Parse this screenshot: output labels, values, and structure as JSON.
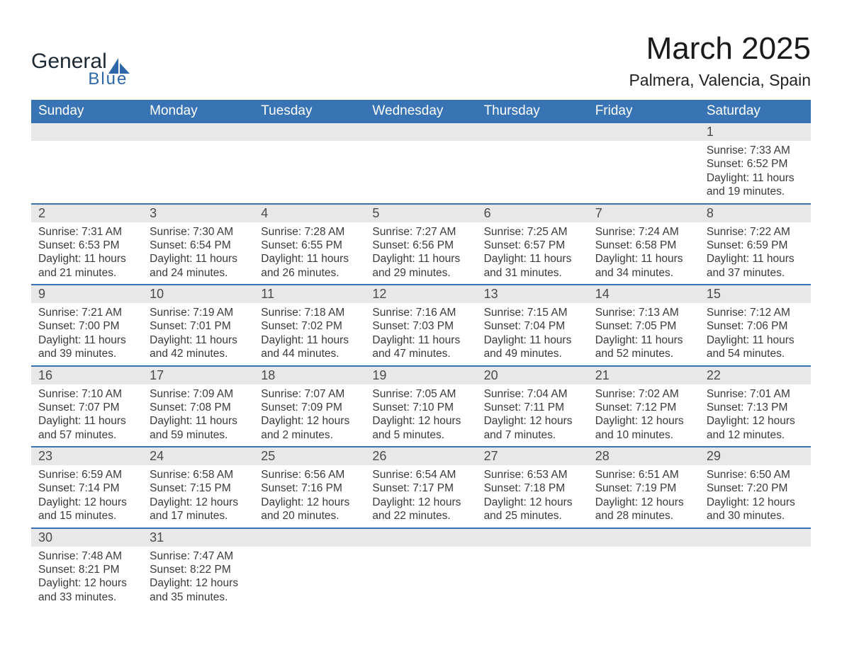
{
  "brand": {
    "word1": "General",
    "word2": "Blue",
    "word1_color": "#1e2a33",
    "word2_color": "#2d67a9",
    "sail_color": "#2d67a9"
  },
  "header": {
    "title": "March 2025",
    "location": "Palmera, Valencia, Spain",
    "title_fontsize": 44,
    "location_fontsize": 23,
    "title_color": "#1a1a1a",
    "location_color": "#222222"
  },
  "calendar": {
    "header_bg": "#3874b4",
    "header_fg": "#ffffff",
    "daynum_bg": "#e8e8e8",
    "daynum_fg": "#4a4a4a",
    "row_border_color": "#3874b4",
    "body_text_color": "#3a3a3a",
    "background_color": "#ffffff",
    "columns": [
      "Sunday",
      "Monday",
      "Tuesday",
      "Wednesday",
      "Thursday",
      "Friday",
      "Saturday"
    ],
    "weeks": [
      [
        null,
        null,
        null,
        null,
        null,
        null,
        {
          "n": "1",
          "sunrise": "Sunrise: 7:33 AM",
          "sunset": "Sunset: 6:52 PM",
          "day1": "Daylight: 11 hours",
          "day2": "and 19 minutes."
        }
      ],
      [
        {
          "n": "2",
          "sunrise": "Sunrise: 7:31 AM",
          "sunset": "Sunset: 6:53 PM",
          "day1": "Daylight: 11 hours",
          "day2": "and 21 minutes."
        },
        {
          "n": "3",
          "sunrise": "Sunrise: 7:30 AM",
          "sunset": "Sunset: 6:54 PM",
          "day1": "Daylight: 11 hours",
          "day2": "and 24 minutes."
        },
        {
          "n": "4",
          "sunrise": "Sunrise: 7:28 AM",
          "sunset": "Sunset: 6:55 PM",
          "day1": "Daylight: 11 hours",
          "day2": "and 26 minutes."
        },
        {
          "n": "5",
          "sunrise": "Sunrise: 7:27 AM",
          "sunset": "Sunset: 6:56 PM",
          "day1": "Daylight: 11 hours",
          "day2": "and 29 minutes."
        },
        {
          "n": "6",
          "sunrise": "Sunrise: 7:25 AM",
          "sunset": "Sunset: 6:57 PM",
          "day1": "Daylight: 11 hours",
          "day2": "and 31 minutes."
        },
        {
          "n": "7",
          "sunrise": "Sunrise: 7:24 AM",
          "sunset": "Sunset: 6:58 PM",
          "day1": "Daylight: 11 hours",
          "day2": "and 34 minutes."
        },
        {
          "n": "8",
          "sunrise": "Sunrise: 7:22 AM",
          "sunset": "Sunset: 6:59 PM",
          "day1": "Daylight: 11 hours",
          "day2": "and 37 minutes."
        }
      ],
      [
        {
          "n": "9",
          "sunrise": "Sunrise: 7:21 AM",
          "sunset": "Sunset: 7:00 PM",
          "day1": "Daylight: 11 hours",
          "day2": "and 39 minutes."
        },
        {
          "n": "10",
          "sunrise": "Sunrise: 7:19 AM",
          "sunset": "Sunset: 7:01 PM",
          "day1": "Daylight: 11 hours",
          "day2": "and 42 minutes."
        },
        {
          "n": "11",
          "sunrise": "Sunrise: 7:18 AM",
          "sunset": "Sunset: 7:02 PM",
          "day1": "Daylight: 11 hours",
          "day2": "and 44 minutes."
        },
        {
          "n": "12",
          "sunrise": "Sunrise: 7:16 AM",
          "sunset": "Sunset: 7:03 PM",
          "day1": "Daylight: 11 hours",
          "day2": "and 47 minutes."
        },
        {
          "n": "13",
          "sunrise": "Sunrise: 7:15 AM",
          "sunset": "Sunset: 7:04 PM",
          "day1": "Daylight: 11 hours",
          "day2": "and 49 minutes."
        },
        {
          "n": "14",
          "sunrise": "Sunrise: 7:13 AM",
          "sunset": "Sunset: 7:05 PM",
          "day1": "Daylight: 11 hours",
          "day2": "and 52 minutes."
        },
        {
          "n": "15",
          "sunrise": "Sunrise: 7:12 AM",
          "sunset": "Sunset: 7:06 PM",
          "day1": "Daylight: 11 hours",
          "day2": "and 54 minutes."
        }
      ],
      [
        {
          "n": "16",
          "sunrise": "Sunrise: 7:10 AM",
          "sunset": "Sunset: 7:07 PM",
          "day1": "Daylight: 11 hours",
          "day2": "and 57 minutes."
        },
        {
          "n": "17",
          "sunrise": "Sunrise: 7:09 AM",
          "sunset": "Sunset: 7:08 PM",
          "day1": "Daylight: 11 hours",
          "day2": "and 59 minutes."
        },
        {
          "n": "18",
          "sunrise": "Sunrise: 7:07 AM",
          "sunset": "Sunset: 7:09 PM",
          "day1": "Daylight: 12 hours",
          "day2": "and 2 minutes."
        },
        {
          "n": "19",
          "sunrise": "Sunrise: 7:05 AM",
          "sunset": "Sunset: 7:10 PM",
          "day1": "Daylight: 12 hours",
          "day2": "and 5 minutes."
        },
        {
          "n": "20",
          "sunrise": "Sunrise: 7:04 AM",
          "sunset": "Sunset: 7:11 PM",
          "day1": "Daylight: 12 hours",
          "day2": "and 7 minutes."
        },
        {
          "n": "21",
          "sunrise": "Sunrise: 7:02 AM",
          "sunset": "Sunset: 7:12 PM",
          "day1": "Daylight: 12 hours",
          "day2": "and 10 minutes."
        },
        {
          "n": "22",
          "sunrise": "Sunrise: 7:01 AM",
          "sunset": "Sunset: 7:13 PM",
          "day1": "Daylight: 12 hours",
          "day2": "and 12 minutes."
        }
      ],
      [
        {
          "n": "23",
          "sunrise": "Sunrise: 6:59 AM",
          "sunset": "Sunset: 7:14 PM",
          "day1": "Daylight: 12 hours",
          "day2": "and 15 minutes."
        },
        {
          "n": "24",
          "sunrise": "Sunrise: 6:58 AM",
          "sunset": "Sunset: 7:15 PM",
          "day1": "Daylight: 12 hours",
          "day2": "and 17 minutes."
        },
        {
          "n": "25",
          "sunrise": "Sunrise: 6:56 AM",
          "sunset": "Sunset: 7:16 PM",
          "day1": "Daylight: 12 hours",
          "day2": "and 20 minutes."
        },
        {
          "n": "26",
          "sunrise": "Sunrise: 6:54 AM",
          "sunset": "Sunset: 7:17 PM",
          "day1": "Daylight: 12 hours",
          "day2": "and 22 minutes."
        },
        {
          "n": "27",
          "sunrise": "Sunrise: 6:53 AM",
          "sunset": "Sunset: 7:18 PM",
          "day1": "Daylight: 12 hours",
          "day2": "and 25 minutes."
        },
        {
          "n": "28",
          "sunrise": "Sunrise: 6:51 AM",
          "sunset": "Sunset: 7:19 PM",
          "day1": "Daylight: 12 hours",
          "day2": "and 28 minutes."
        },
        {
          "n": "29",
          "sunrise": "Sunrise: 6:50 AM",
          "sunset": "Sunset: 7:20 PM",
          "day1": "Daylight: 12 hours",
          "day2": "and 30 minutes."
        }
      ],
      [
        {
          "n": "30",
          "sunrise": "Sunrise: 7:48 AM",
          "sunset": "Sunset: 8:21 PM",
          "day1": "Daylight: 12 hours",
          "day2": "and 33 minutes."
        },
        {
          "n": "31",
          "sunrise": "Sunrise: 7:47 AM",
          "sunset": "Sunset: 8:22 PM",
          "day1": "Daylight: 12 hours",
          "day2": "and 35 minutes."
        },
        null,
        null,
        null,
        null,
        null
      ]
    ]
  }
}
